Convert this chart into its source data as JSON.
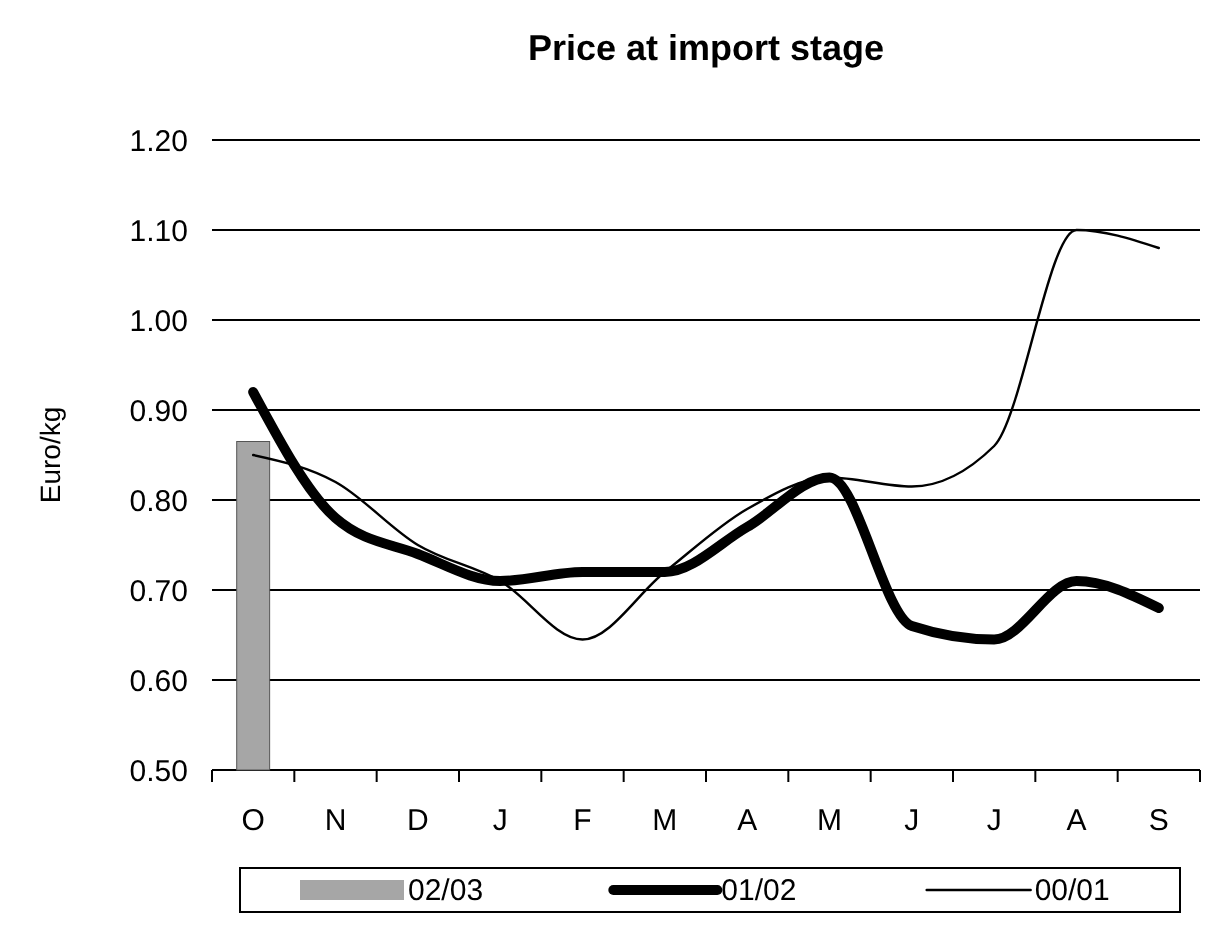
{
  "chart_data": {
    "type": "line",
    "title": "Price at import stage",
    "ylabel": "Euro/kg",
    "categories": [
      "O",
      "N",
      "D",
      "J",
      "F",
      "M",
      "A",
      "M",
      "J",
      "J",
      "A",
      "S"
    ],
    "series": [
      {
        "name": "02/03",
        "type": "bar",
        "color": "#a6a6a6",
        "values": [
          0.865,
          null,
          null,
          null,
          null,
          null,
          null,
          null,
          null,
          null,
          null,
          null
        ]
      },
      {
        "name": "01/02",
        "color": "#000000",
        "values": [
          0.92,
          0.78,
          0.74,
          0.71,
          0.72,
          0.72,
          0.77,
          0.825,
          0.66,
          0.645,
          0.71,
          0.68
        ]
      },
      {
        "name": "00/01",
        "color": "#000000",
        "values": [
          0.85,
          0.82,
          0.75,
          0.71,
          0.645,
          0.72,
          0.79,
          0.825,
          0.815,
          0.86,
          1.1,
          1.08
        ]
      }
    ],
    "ylim": [
      0.5,
      1.2
    ],
    "yticks": [
      {
        "value": 0.5,
        "label": "0.50"
      },
      {
        "value": 0.6,
        "label": "0.60"
      },
      {
        "value": 0.7,
        "label": "0.70"
      },
      {
        "value": 0.8,
        "label": "0.80"
      },
      {
        "value": 0.9,
        "label": "0.90"
      },
      {
        "value": 1.0,
        "label": "1.00"
      },
      {
        "value": 1.1,
        "label": "1.10"
      },
      {
        "value": 1.2,
        "label": "1.20"
      }
    ],
    "grid": "y",
    "legend": "bottom"
  }
}
